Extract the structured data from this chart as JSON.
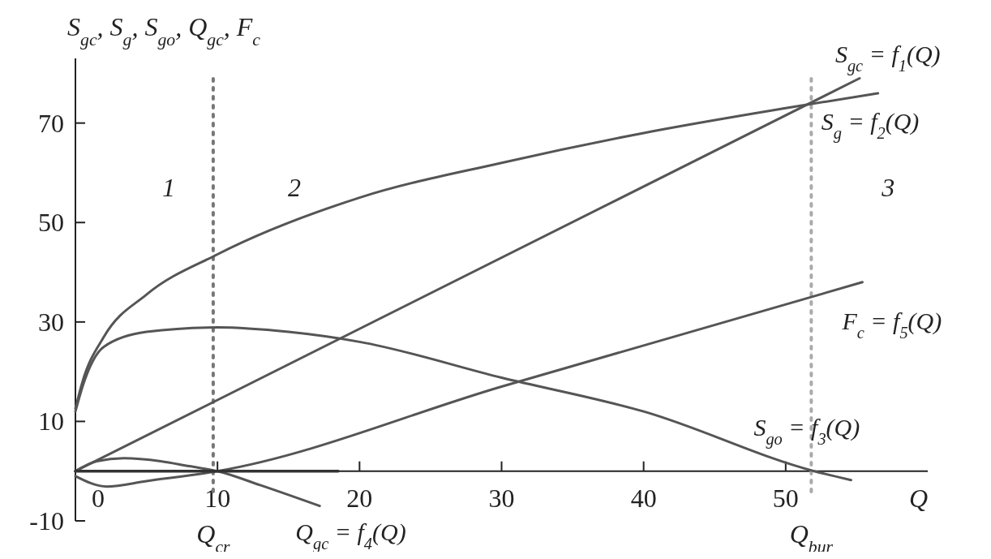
{
  "chart_data": {
    "type": "line",
    "ylabel": "S$_{gc}$, S$_{g}$, S$_{go}$, Q$_{gc}$, F$_{c}$",
    "xlabel": "Q",
    "xlim": [
      0,
      60
    ],
    "ylim": [
      -10,
      83
    ],
    "xticks": [
      0,
      10,
      20,
      30,
      40,
      50
    ],
    "yticks": [
      -10,
      10,
      30,
      50,
      70
    ],
    "grid": false,
    "line_style": "solid",
    "marker": "none",
    "series": [
      {
        "name": "S$_{gc}$ = f$_{1}$(Q)",
        "color": "#555555",
        "x": [
          0,
          55.2
        ],
        "values": [
          0,
          79
        ]
      },
      {
        "name": "S$_{g}$ = f$_{2}$(Q)",
        "color": "#555555",
        "x": [
          0,
          0.5,
          2,
          5,
          10,
          20,
          30,
          40,
          50,
          56.5
        ],
        "values": [
          12.6,
          18,
          27,
          35.5,
          43.6,
          55,
          62,
          68,
          73,
          76
        ]
      },
      {
        "name": "F$_{c}$ = f$_{5}$(Q)",
        "color": "#555555",
        "x": [
          0,
          2.2,
          5,
          10,
          30,
          55.4
        ],
        "values": [
          -1,
          -3.1,
          -2,
          0,
          17,
          38
        ]
      },
      {
        "name": "S$_{go}$ = f$_{3}$(Q)",
        "color": "#555555",
        "x": [
          0,
          0.5,
          2,
          5,
          10,
          15,
          20,
          30,
          40,
          52,
          54.6
        ],
        "values": [
          12,
          17,
          25,
          28,
          28.9,
          28,
          26,
          18.8,
          12,
          0,
          -1.8
        ]
      },
      {
        "name": "Q$_{gc}$ = f$_{4}$(Q)",
        "color": "#555555",
        "x": [
          0,
          1.5,
          3.4,
          6,
          8,
          10,
          13,
          17.2
        ],
        "values": [
          0,
          2,
          2.6,
          2,
          1,
          0,
          -2.8,
          -7
        ]
      },
      {
        "color": "#333333",
        "x": [
          0,
          18.5
        ],
        "values": [
          0,
          0
        ]
      }
    ],
    "ref_lines": [
      {
        "axis": "x",
        "value": 9.7,
        "label": "Q$_{cr}$",
        "color": "#777777",
        "line_style": "dotted"
      },
      {
        "axis": "x",
        "value": 51.8,
        "label": "Q$_{bur}$",
        "color": "#aaaaaa",
        "line_style": "dotted"
      }
    ],
    "annotations": [
      "1",
      "2",
      "3"
    ]
  }
}
